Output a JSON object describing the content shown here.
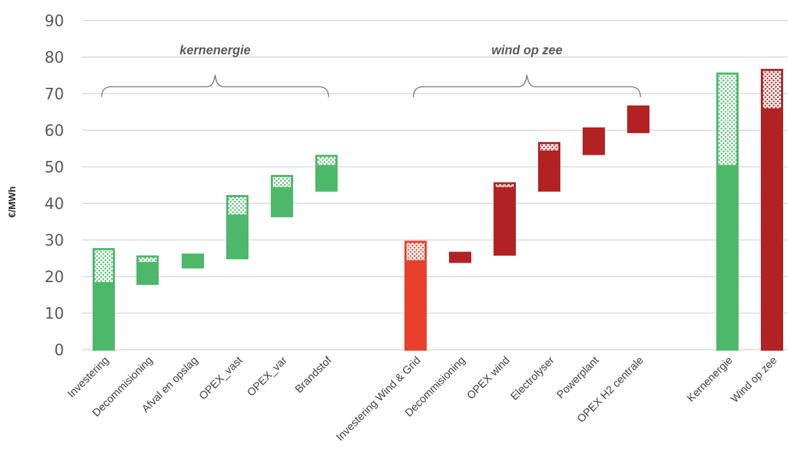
{
  "chart_data": {
    "type": "bar",
    "subtype": "waterfall-range",
    "ylabel": "€/MWh",
    "ylim": [
      0,
      90
    ],
    "yticks": [
      0,
      10,
      20,
      30,
      40,
      50,
      60,
      70,
      80,
      90
    ],
    "grid": true,
    "groups": [
      {
        "label": "kernenergie",
        "from": 0,
        "to": 5
      },
      {
        "label": "wind op zee",
        "from": 6,
        "to": 11
      }
    ],
    "colors": {
      "green": "#4db86a",
      "red": "#b22222",
      "bright_red": "#e8402c"
    },
    "bars": [
      {
        "label": "Investering",
        "base": 0,
        "solid_top": 18.5,
        "hatched_top": 27.5,
        "color": "green"
      },
      {
        "label": "Decommisioning",
        "base": 18,
        "solid_top": 24,
        "hatched_top": 25.5,
        "color": "green"
      },
      {
        "label": "Afval en opslag",
        "base": 22.5,
        "solid_top": 26,
        "hatched_top": 26,
        "color": "green"
      },
      {
        "label": "OPEX_vast",
        "base": 25,
        "solid_top": 37,
        "hatched_top": 42,
        "color": "green"
      },
      {
        "label": "OPEX_var",
        "base": 36.5,
        "solid_top": 44.5,
        "hatched_top": 47.5,
        "color": "green"
      },
      {
        "label": "Brandstof",
        "base": 43.5,
        "solid_top": 50.5,
        "hatched_top": 53,
        "color": "green"
      },
      {
        "label": "Investering Wind & Grid",
        "base": 0,
        "solid_top": 24.5,
        "hatched_top": 29.5,
        "color": "bright_red"
      },
      {
        "label": "Decommisioning",
        "base": 24,
        "solid_top": 26.5,
        "hatched_top": 26.5,
        "color": "red"
      },
      {
        "label": "OPEX wind",
        "base": 26,
        "solid_top": 44.5,
        "hatched_top": 45.5,
        "color": "red"
      },
      {
        "label": "Electrolyser",
        "base": 43.5,
        "solid_top": 54.5,
        "hatched_top": 56.5,
        "color": "red"
      },
      {
        "label": "Powerplant",
        "base": 53.5,
        "solid_top": 60.5,
        "hatched_top": 60.5,
        "color": "red"
      },
      {
        "label": "OPEX H2 centrale",
        "base": 59.5,
        "solid_top": 66.5,
        "hatched_top": 66.5,
        "color": "red"
      },
      {
        "label": "Kernenergie",
        "base": 0,
        "solid_top": 50.5,
        "hatched_top": 75.5,
        "color": "green"
      },
      {
        "label": "Wind op zee",
        "base": 0,
        "solid_top": 66,
        "hatched_top": 76.5,
        "color": "red"
      }
    ]
  }
}
